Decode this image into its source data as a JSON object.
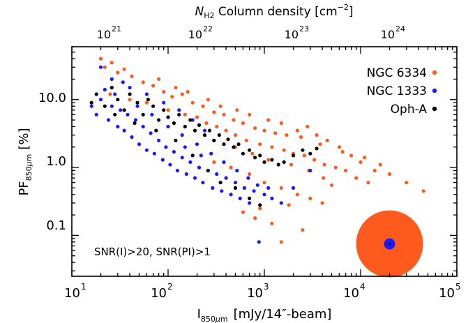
{
  "chart_data": {
    "type": "scatter",
    "xlabel": {
      "main": "I",
      "sub": "850",
      "mu": "µ",
      "m": "m",
      "rest": "[mJy/14″-beam]"
    },
    "ylabel": {
      "main": "PF",
      "sub": "850",
      "mu": "µ",
      "m": "m",
      "rest": "[%]"
    },
    "top_axis_label": {
      "N": "N",
      "sub": "H2",
      "rest": " Column density [cm",
      "exp": "−2",
      "close": "]"
    },
    "x_scale": "log",
    "y_scale": "log",
    "xlim": [
      10,
      100000
    ],
    "ylim": [
      0.025,
      60
    ],
    "x_ticks": [
      {
        "value": 10,
        "base": "10",
        "exp": "1"
      },
      {
        "value": 100,
        "base": "10",
        "exp": "2"
      },
      {
        "value": 1000,
        "base": "10",
        "exp": "3"
      },
      {
        "value": 10000,
        "base": "10",
        "exp": "4"
      },
      {
        "value": 100000,
        "base": "10",
        "exp": "5"
      }
    ],
    "y_ticks": [
      {
        "value": 0.1,
        "label": "0.1"
      },
      {
        "value": 1.0,
        "label": "1.0"
      },
      {
        "value": 10.0,
        "label": "10.0"
      }
    ],
    "top_ticks": [
      {
        "value": 20,
        "base": "10",
        "exp": "21"
      },
      {
        "value": 200,
        "base": "10",
        "exp": "22"
      },
      {
        "value": 2000,
        "base": "10",
        "exp": "23"
      },
      {
        "value": 20000,
        "base": "10",
        "exp": "24"
      }
    ],
    "annotation": "SNR(I)>20, SNR(PI)>1",
    "legend_position": "top-right",
    "beams": {
      "x": 20000,
      "y": 0.075,
      "items": [
        {
          "name": "NGC 6334",
          "radius_ratio": 1.8
        },
        {
          "name": "NGC 1333",
          "radius_ratio": 0.3
        },
        {
          "name": "Oph-A",
          "radius_ratio": 0.05
        }
      ]
    },
    "series": [
      {
        "name": "NGC 6334",
        "color": "#ff5a1e",
        "points": [
          [
            20,
            40
          ],
          [
            22,
            30
          ],
          [
            26,
            35
          ],
          [
            30,
            25
          ],
          [
            35,
            28
          ],
          [
            42,
            22
          ],
          [
            55,
            18
          ],
          [
            70,
            16
          ],
          [
            90,
            13
          ],
          [
            110,
            11
          ],
          [
            140,
            12
          ],
          [
            180,
            9
          ],
          [
            230,
            8
          ],
          [
            300,
            6.5
          ],
          [
            380,
            6
          ],
          [
            480,
            5
          ],
          [
            600,
            4.5
          ],
          [
            800,
            3.8
          ],
          [
            1000,
            3.5
          ],
          [
            1300,
            3.2
          ],
          [
            1700,
            3
          ],
          [
            2200,
            3.5
          ],
          [
            2800,
            4
          ],
          [
            3500,
            3
          ],
          [
            4500,
            2.5
          ],
          [
            6000,
            2
          ],
          [
            8000,
            1.5
          ],
          [
            10000,
            1.2
          ],
          [
            14000,
            0.9
          ],
          [
            20000,
            0.8
          ],
          [
            30000,
            0.6
          ],
          [
            45000,
            0.45
          ],
          [
            25,
            12
          ],
          [
            40,
            10
          ],
          [
            60,
            9
          ],
          [
            100,
            7
          ],
          [
            150,
            6
          ],
          [
            200,
            5.5
          ],
          [
            250,
            4.5
          ],
          [
            320,
            4
          ],
          [
            400,
            3.5
          ],
          [
            500,
            3
          ],
          [
            650,
            2.5
          ],
          [
            900,
            2.2
          ],
          [
            1200,
            2
          ],
          [
            1600,
            1.8
          ],
          [
            2000,
            1.6
          ],
          [
            2600,
            1.5
          ],
          [
            3300,
            1.3
          ],
          [
            4200,
            1.1
          ],
          [
            5500,
            1
          ],
          [
            7000,
            0.9
          ],
          [
            9000,
            0.7
          ],
          [
            12000,
            0.6
          ],
          [
            300,
            1.2
          ],
          [
            450,
            1
          ],
          [
            700,
            0.8
          ],
          [
            1000,
            0.6
          ],
          [
            1500,
            0.5
          ],
          [
            2200,
            0.4
          ],
          [
            3000,
            0.35
          ],
          [
            4000,
            0.3
          ],
          [
            600,
            0.22
          ],
          [
            800,
            0.18
          ],
          [
            1200,
            0.15
          ],
          [
            2500,
            0.12
          ],
          [
            1500,
            0.08
          ],
          [
            900,
            0.25
          ],
          [
            1800,
            0.28
          ],
          [
            5000,
            0.55
          ],
          [
            80,
            20
          ],
          [
            120,
            15
          ],
          [
            160,
            13
          ],
          [
            260,
            10
          ],
          [
            350,
            8
          ],
          [
            520,
            7
          ],
          [
            700,
            6
          ],
          [
            1100,
            5
          ],
          [
            1500,
            4.5
          ],
          [
            2400,
            2.8
          ],
          [
            3800,
            2.2
          ],
          [
            6500,
            1.7
          ],
          [
            11000,
            1.4
          ],
          [
            16000,
            1.1
          ],
          [
            500,
            2
          ],
          [
            750,
            1.6
          ],
          [
            1100,
            1.3
          ],
          [
            1900,
            1.1
          ],
          [
            2900,
            0.9
          ],
          [
            4100,
            0.7
          ]
        ]
      },
      {
        "name": "NGC 1333",
        "color": "#1a1aff",
        "points": [
          [
            16,
            8
          ],
          [
            18,
            6
          ],
          [
            20,
            10
          ],
          [
            22,
            14
          ],
          [
            24,
            5
          ],
          [
            26,
            8
          ],
          [
            28,
            12
          ],
          [
            30,
            4
          ],
          [
            32,
            7
          ],
          [
            35,
            3.5
          ],
          [
            38,
            6
          ],
          [
            42,
            2.8
          ],
          [
            46,
            5
          ],
          [
            50,
            2.2
          ],
          [
            55,
            4
          ],
          [
            60,
            1.8
          ],
          [
            66,
            3.2
          ],
          [
            72,
            1.6
          ],
          [
            80,
            2.5
          ],
          [
            88,
            1.3
          ],
          [
            95,
            2
          ],
          [
            105,
            1.1
          ],
          [
            115,
            1.7
          ],
          [
            125,
            0.9
          ],
          [
            140,
            1.4
          ],
          [
            155,
            0.8
          ],
          [
            170,
            1.2
          ],
          [
            190,
            0.7
          ],
          [
            210,
            1
          ],
          [
            230,
            0.6
          ],
          [
            260,
            0.9
          ],
          [
            290,
            0.5
          ],
          [
            320,
            0.8
          ],
          [
            360,
            0.45
          ],
          [
            400,
            0.7
          ],
          [
            450,
            0.4
          ],
          [
            500,
            0.6
          ],
          [
            560,
            0.35
          ],
          [
            620,
            0.5
          ],
          [
            700,
            0.3
          ],
          [
            780,
            0.45
          ],
          [
            880,
            0.08
          ],
          [
            1000,
            0.4
          ],
          [
            1200,
            0.35
          ],
          [
            1500,
            0.3
          ],
          [
            2000,
            0.5
          ],
          [
            3000,
            0.9
          ],
          [
            40,
            15
          ],
          [
            60,
            12
          ],
          [
            90,
            9
          ],
          [
            130,
            7
          ],
          [
            180,
            5
          ],
          [
            240,
            3.5
          ],
          [
            300,
            2.5
          ],
          [
            20,
            30
          ],
          [
            26,
            20
          ],
          [
            34,
            18
          ],
          [
            48,
            8
          ],
          [
            68,
            6
          ],
          [
            100,
            4
          ],
          [
            140,
            3
          ],
          [
            200,
            2.2
          ],
          [
            280,
            1.6
          ],
          [
            380,
            1.2
          ],
          [
            520,
            0.9
          ],
          [
            680,
            0.7
          ],
          [
            850,
            0.55
          ],
          [
            1100,
            0.5
          ],
          [
            150,
            2
          ],
          [
            220,
            1.5
          ]
        ]
      },
      {
        "name": "Oph-A",
        "color": "#000000",
        "points": [
          [
            16,
            9
          ],
          [
            18,
            12
          ],
          [
            22,
            8
          ],
          [
            26,
            15
          ],
          [
            30,
            10
          ],
          [
            35,
            7
          ],
          [
            40,
            12
          ],
          [
            48,
            9
          ],
          [
            55,
            6
          ],
          [
            62,
            10
          ],
          [
            70,
            8
          ],
          [
            80,
            5
          ],
          [
            90,
            7
          ],
          [
            100,
            5.5
          ],
          [
            115,
            4.5
          ],
          [
            130,
            6
          ],
          [
            150,
            4
          ],
          [
            170,
            5
          ],
          [
            190,
            3.5
          ],
          [
            210,
            4.2
          ],
          [
            240,
            3
          ],
          [
            270,
            3.5
          ],
          [
            300,
            2.5
          ],
          [
            340,
            3
          ],
          [
            380,
            2.2
          ],
          [
            420,
            2.6
          ],
          [
            480,
            2
          ],
          [
            540,
            2.2
          ],
          [
            600,
            1.6
          ],
          [
            700,
            1.8
          ],
          [
            800,
            1.4
          ],
          [
            900,
            1.5
          ],
          [
            1000,
            1.2
          ],
          [
            1200,
            1.3
          ],
          [
            1400,
            1.1
          ],
          [
            1600,
            1.2
          ],
          [
            2000,
            1.5
          ],
          [
            2500,
            1.8
          ],
          [
            3000,
            1.6
          ],
          [
            3500,
            1.9
          ],
          [
            350,
            0.6
          ],
          [
            500,
            0.5
          ],
          [
            700,
            0.35
          ],
          [
            900,
            0.28
          ],
          [
            260,
            0.9
          ],
          [
            180,
            1.5
          ],
          [
            120,
            2.5
          ],
          [
            75,
            3.5
          ],
          [
            45,
            4.5
          ],
          [
            28,
            6
          ]
        ]
      }
    ]
  }
}
